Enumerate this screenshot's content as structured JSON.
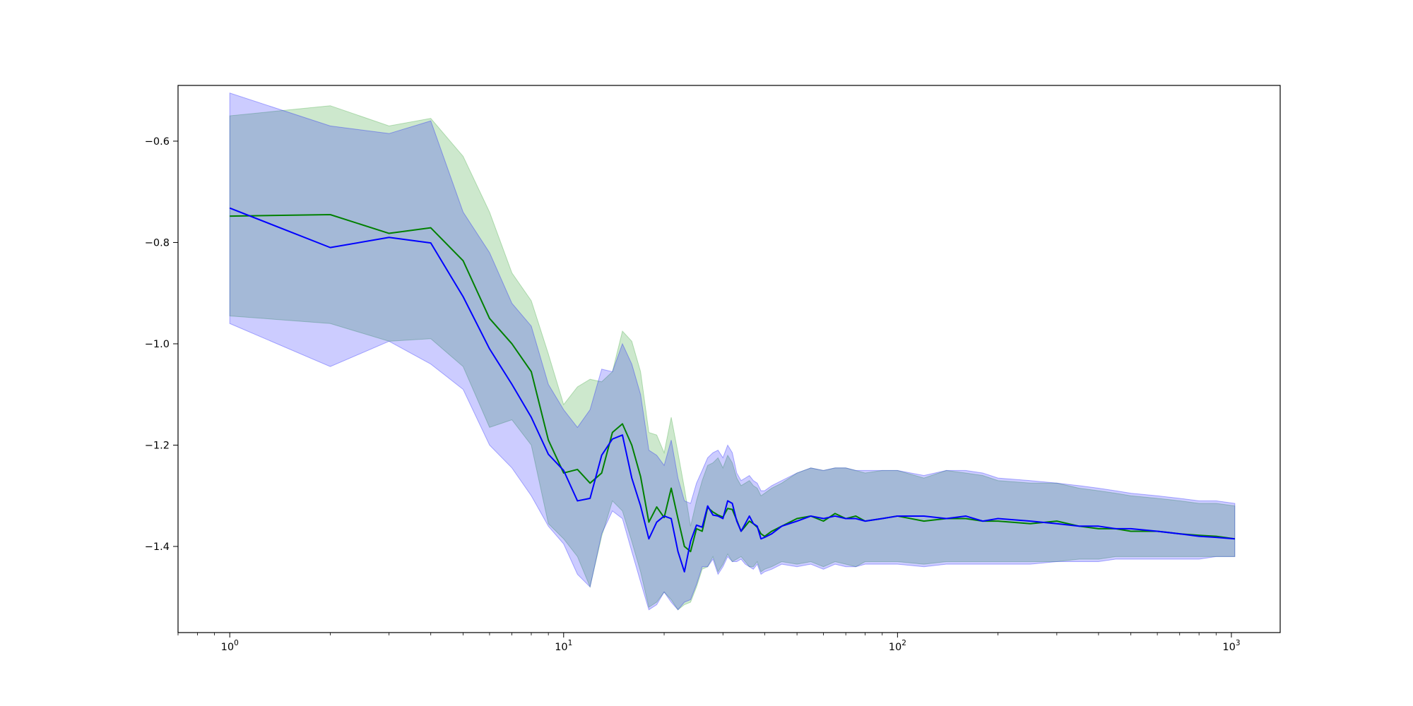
{
  "chart_data": {
    "type": "line",
    "title": "",
    "xlabel": "",
    "ylabel": "",
    "x_scale": "log",
    "xlim": [
      0.7,
      1400
    ],
    "ylim": [
      -1.57,
      -0.49
    ],
    "grid": false,
    "legend": "none",
    "x_ticks": [
      {
        "value": 1,
        "base": "10",
        "exp": "0"
      },
      {
        "value": 10,
        "base": "10",
        "exp": "1"
      },
      {
        "value": 100,
        "base": "10",
        "exp": "2"
      },
      {
        "value": 1000,
        "base": "10",
        "exp": "3"
      }
    ],
    "y_ticks": [
      {
        "value": -0.6,
        "label": "−0.6"
      },
      {
        "value": -0.8,
        "label": "−0.8"
      },
      {
        "value": -1.0,
        "label": "−1.0"
      },
      {
        "value": -1.2,
        "label": "−1.2"
      },
      {
        "value": -1.4,
        "label": "−1.4"
      }
    ],
    "series": [
      {
        "color": "#008000",
        "band_color": "#2ca02c",
        "x": [
          1,
          2,
          3,
          4,
          5,
          6,
          7,
          8,
          9,
          10,
          11,
          12,
          13,
          14,
          15,
          16,
          17,
          18,
          19,
          20,
          21,
          22,
          23,
          24,
          25,
          26,
          27,
          28,
          29,
          30,
          31,
          32,
          33,
          34,
          35,
          36,
          37,
          38,
          39,
          40,
          42,
          45,
          50,
          55,
          60,
          65,
          70,
          75,
          80,
          90,
          100,
          120,
          140,
          160,
          180,
          200,
          250,
          300,
          350,
          400,
          450,
          500,
          600,
          700,
          800,
          900,
          1024
        ],
        "values": [
          -0.748,
          -0.745,
          -0.782,
          -0.771,
          -0.836,
          -0.95,
          -1.0,
          -1.055,
          -1.19,
          -1.255,
          -1.248,
          -1.275,
          -1.255,
          -1.175,
          -1.158,
          -1.2,
          -1.262,
          -1.352,
          -1.322,
          -1.343,
          -1.285,
          -1.345,
          -1.4,
          -1.41,
          -1.365,
          -1.37,
          -1.323,
          -1.332,
          -1.338,
          -1.342,
          -1.325,
          -1.327,
          -1.348,
          -1.37,
          -1.36,
          -1.35,
          -1.355,
          -1.362,
          -1.375,
          -1.38,
          -1.37,
          -1.36,
          -1.345,
          -1.34,
          -1.35,
          -1.335,
          -1.345,
          -1.34,
          -1.35,
          -1.345,
          -1.34,
          -1.35,
          -1.345,
          -1.345,
          -1.35,
          -1.35,
          -1.355,
          -1.35,
          -1.36,
          -1.365,
          -1.365,
          -1.37,
          -1.37,
          -1.375,
          -1.378,
          -1.38,
          -1.385
        ],
        "lower": [
          -0.945,
          -0.96,
          -0.995,
          -0.99,
          -1.045,
          -1.165,
          -1.15,
          -1.2,
          -1.355,
          -1.385,
          -1.42,
          -1.48,
          -1.38,
          -1.31,
          -1.33,
          -1.39,
          -1.45,
          -1.52,
          -1.51,
          -1.49,
          -1.505,
          -1.525,
          -1.515,
          -1.51,
          -1.48,
          -1.445,
          -1.44,
          -1.42,
          -1.45,
          -1.435,
          -1.415,
          -1.43,
          -1.425,
          -1.42,
          -1.43,
          -1.44,
          -1.44,
          -1.43,
          -1.45,
          -1.445,
          -1.44,
          -1.43,
          -1.435,
          -1.43,
          -1.44,
          -1.43,
          -1.435,
          -1.44,
          -1.43,
          -1.43,
          -1.43,
          -1.435,
          -1.43,
          -1.43,
          -1.43,
          -1.43,
          -1.43,
          -1.43,
          -1.425,
          -1.425,
          -1.42,
          -1.42,
          -1.42,
          -1.42,
          -1.42,
          -1.42,
          -1.42
        ],
        "upper": [
          -0.55,
          -0.53,
          -0.57,
          -0.555,
          -0.63,
          -0.74,
          -0.86,
          -0.915,
          -1.02,
          -1.12,
          -1.085,
          -1.07,
          -1.075,
          -1.055,
          -0.975,
          -0.995,
          -1.055,
          -1.175,
          -1.18,
          -1.215,
          -1.145,
          -1.215,
          -1.285,
          -1.36,
          -1.31,
          -1.27,
          -1.24,
          -1.235,
          -1.225,
          -1.245,
          -1.22,
          -1.235,
          -1.265,
          -1.28,
          -1.275,
          -1.27,
          -1.28,
          -1.285,
          -1.3,
          -1.295,
          -1.285,
          -1.275,
          -1.255,
          -1.245,
          -1.25,
          -1.245,
          -1.245,
          -1.25,
          -1.255,
          -1.25,
          -1.25,
          -1.265,
          -1.25,
          -1.255,
          -1.26,
          -1.27,
          -1.275,
          -1.275,
          -1.285,
          -1.29,
          -1.295,
          -1.3,
          -1.305,
          -1.31,
          -1.315,
          -1.315,
          -1.32
        ]
      },
      {
        "color": "#0000ff",
        "band_color": "#0000ff",
        "x": [
          1,
          2,
          3,
          4,
          5,
          6,
          7,
          8,
          9,
          10,
          11,
          12,
          13,
          14,
          15,
          16,
          17,
          18,
          19,
          20,
          21,
          22,
          23,
          24,
          25,
          26,
          27,
          28,
          29,
          30,
          31,
          32,
          33,
          34,
          35,
          36,
          37,
          38,
          39,
          40,
          42,
          45,
          50,
          55,
          60,
          65,
          70,
          75,
          80,
          90,
          100,
          120,
          140,
          160,
          180,
          200,
          250,
          300,
          350,
          400,
          450,
          500,
          600,
          700,
          800,
          900,
          1024
        ],
        "values": [
          -0.732,
          -0.81,
          -0.79,
          -0.801,
          -0.907,
          -1.01,
          -1.08,
          -1.145,
          -1.218,
          -1.25,
          -1.31,
          -1.305,
          -1.22,
          -1.188,
          -1.18,
          -1.265,
          -1.32,
          -1.385,
          -1.352,
          -1.34,
          -1.345,
          -1.41,
          -1.45,
          -1.39,
          -1.358,
          -1.362,
          -1.32,
          -1.338,
          -1.34,
          -1.345,
          -1.31,
          -1.315,
          -1.35,
          -1.37,
          -1.355,
          -1.34,
          -1.355,
          -1.36,
          -1.385,
          -1.382,
          -1.375,
          -1.36,
          -1.35,
          -1.34,
          -1.345,
          -1.34,
          -1.345,
          -1.345,
          -1.35,
          -1.345,
          -1.34,
          -1.34,
          -1.345,
          -1.34,
          -1.35,
          -1.345,
          -1.35,
          -1.355,
          -1.36,
          -1.36,
          -1.365,
          -1.365,
          -1.37,
          -1.375,
          -1.38,
          -1.382,
          -1.385
        ],
        "lower": [
          -0.96,
          -1.045,
          -0.995,
          -1.04,
          -1.09,
          -1.2,
          -1.245,
          -1.3,
          -1.36,
          -1.395,
          -1.455,
          -1.48,
          -1.375,
          -1.33,
          -1.345,
          -1.41,
          -1.47,
          -1.525,
          -1.515,
          -1.49,
          -1.51,
          -1.525,
          -1.51,
          -1.505,
          -1.475,
          -1.44,
          -1.44,
          -1.425,
          -1.455,
          -1.44,
          -1.42,
          -1.43,
          -1.43,
          -1.425,
          -1.435,
          -1.44,
          -1.445,
          -1.435,
          -1.455,
          -1.45,
          -1.445,
          -1.435,
          -1.44,
          -1.435,
          -1.445,
          -1.435,
          -1.44,
          -1.44,
          -1.435,
          -1.435,
          -1.435,
          -1.44,
          -1.435,
          -1.435,
          -1.435,
          -1.435,
          -1.435,
          -1.43,
          -1.43,
          -1.43,
          -1.425,
          -1.425,
          -1.425,
          -1.425,
          -1.425,
          -1.42,
          -1.42
        ],
        "upper": [
          -0.505,
          -0.57,
          -0.585,
          -0.56,
          -0.74,
          -0.82,
          -0.92,
          -0.965,
          -1.08,
          -1.13,
          -1.165,
          -1.13,
          -1.05,
          -1.055,
          -1.0,
          -1.04,
          -1.1,
          -1.21,
          -1.22,
          -1.24,
          -1.19,
          -1.265,
          -1.31,
          -1.315,
          -1.275,
          -1.25,
          -1.225,
          -1.215,
          -1.21,
          -1.225,
          -1.2,
          -1.215,
          -1.255,
          -1.27,
          -1.265,
          -1.26,
          -1.27,
          -1.275,
          -1.29,
          -1.29,
          -1.28,
          -1.27,
          -1.255,
          -1.245,
          -1.25,
          -1.245,
          -1.245,
          -1.25,
          -1.25,
          -1.25,
          -1.25,
          -1.26,
          -1.25,
          -1.25,
          -1.255,
          -1.265,
          -1.27,
          -1.275,
          -1.28,
          -1.285,
          -1.29,
          -1.295,
          -1.3,
          -1.305,
          -1.31,
          -1.31,
          -1.315
        ]
      }
    ]
  }
}
